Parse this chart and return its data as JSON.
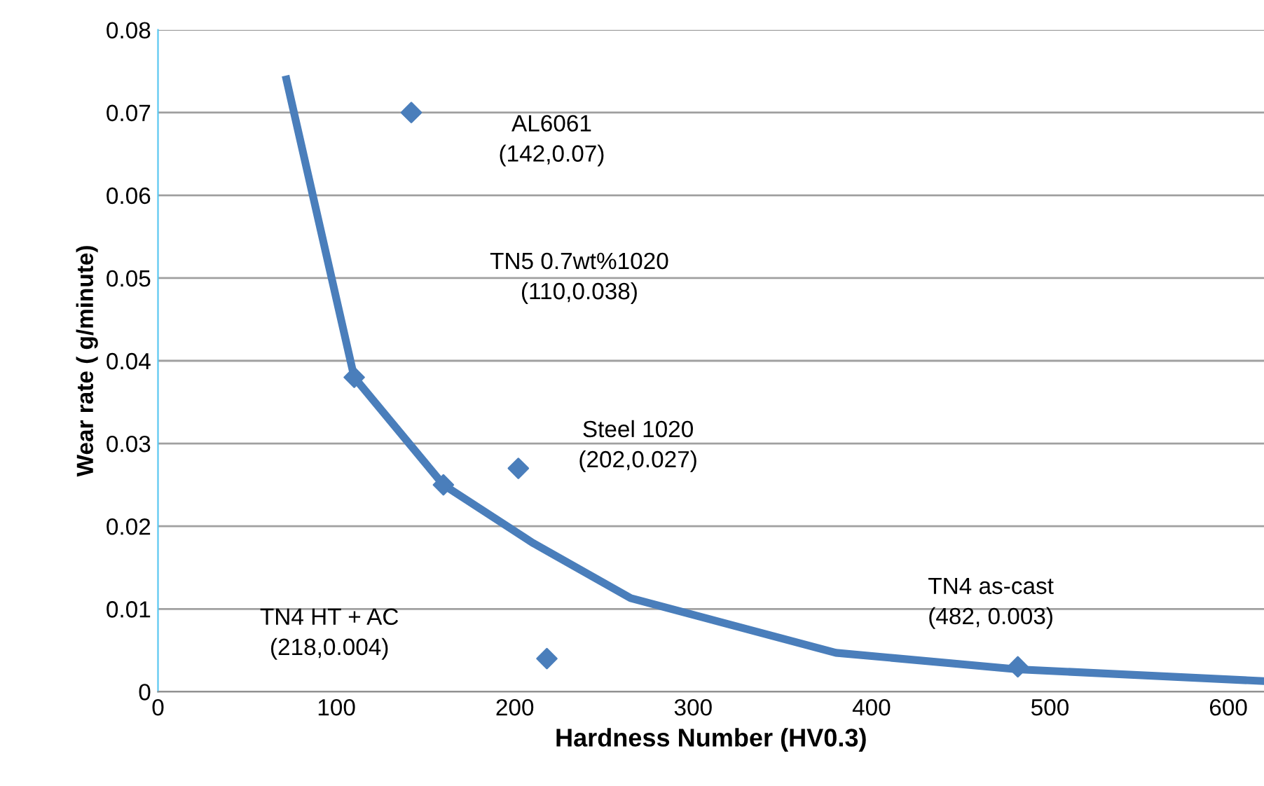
{
  "chart_data": {
    "type": "scatter",
    "xlabel": "Hardness Number (HV0.3)",
    "ylabel": "Wear rate ( g/minute)",
    "xlim": [
      0,
      620
    ],
    "xticks": [
      0,
      100,
      200,
      300,
      400,
      500,
      600
    ],
    "ylim": [
      0,
      0.08
    ],
    "yticks": [
      0,
      0.01,
      0.02,
      0.03,
      0.04,
      0.05,
      0.06,
      0.07,
      0.08
    ],
    "grid": "y",
    "series": [
      {
        "type": "line",
        "color": "#4a7ebb",
        "line_style": "solid",
        "marker": "none",
        "x": [
          72,
          110,
          160,
          210,
          265,
          380,
          482,
          618
        ],
        "values": [
          0.074,
          0.038,
          0.025,
          0.018,
          0.0113,
          0.0047,
          0.0027,
          0.0013
        ]
      },
      {
        "color": "#4a7ebb",
        "marker": "diamond",
        "x": [
          142,
          110,
          160,
          202,
          218,
          482
        ],
        "values": [
          0.07,
          0.038,
          0.025,
          0.027,
          0.004,
          0.003
        ]
      }
    ],
    "annotations": [
      "AL6061\n(142,0.07)",
      "TN5 0.7wt%1020\n(110,0.038)",
      "Steel 1020\n(202,0.027)",
      "TN4 HT + AC\n(218,0.004)",
      "TN4 as-cast\n(482, 0.003)"
    ]
  }
}
